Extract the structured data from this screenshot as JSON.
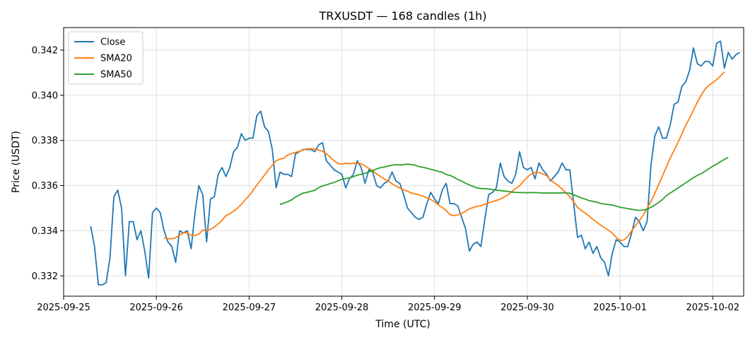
{
  "chart_data": {
    "type": "line",
    "title": "TRXUSDT — 168 candles (1h)",
    "xlabel": "Time (UTC)",
    "ylabel": "Price (USDT)",
    "x_start": "2025-09-25 07:00",
    "x_step_hours": 1,
    "xlim": [
      "2025-09-25 00:00",
      "2025-10-02 08:00"
    ],
    "ylim": [
      0.3311,
      0.343
    ],
    "x_ticks": [
      "2025-09-25",
      "2025-09-26",
      "2025-09-27",
      "2025-09-28",
      "2025-09-29",
      "2025-09-30",
      "2025-10-01",
      "2025-10-02"
    ],
    "y_ticks": [
      "0.332",
      "0.334",
      "0.336",
      "0.338",
      "0.340",
      "0.342"
    ],
    "grid": true,
    "legend_position": "top-left",
    "series": [
      {
        "name": "Close",
        "color": "#1f77b4",
        "values": [
          0.3342,
          0.3333,
          0.3316,
          0.3316,
          0.3317,
          0.3328,
          0.3355,
          0.3358,
          0.335,
          0.332,
          0.3344,
          0.3344,
          0.3336,
          0.334,
          0.3331,
          0.3319,
          0.3348,
          0.335,
          0.3348,
          0.334,
          0.3335,
          0.3333,
          0.3326,
          0.334,
          0.3339,
          0.334,
          0.3332,
          0.3348,
          0.336,
          0.3356,
          0.3335,
          0.3354,
          0.3355,
          0.3365,
          0.3368,
          0.3364,
          0.3368,
          0.3375,
          0.3377,
          0.3383,
          0.338,
          0.3381,
          0.3381,
          0.3391,
          0.3393,
          0.3386,
          0.3384,
          0.3376,
          0.3359,
          0.3366,
          0.3365,
          0.3365,
          0.3364,
          0.3374,
          0.3375,
          0.3376,
          0.3376,
          0.3376,
          0.3375,
          0.3378,
          0.3379,
          0.3371,
          0.3369,
          0.3367,
          0.3366,
          0.3365,
          0.3359,
          0.3363,
          0.3365,
          0.3371,
          0.3368,
          0.3361,
          0.3367,
          0.3366,
          0.336,
          0.3359,
          0.3361,
          0.3362,
          0.3366,
          0.3362,
          0.3361,
          0.3356,
          0.335,
          0.3348,
          0.3346,
          0.3345,
          0.3346,
          0.3352,
          0.3357,
          0.3354,
          0.3352,
          0.3358,
          0.3361,
          0.3352,
          0.3352,
          0.3351,
          0.3346,
          0.3341,
          0.3331,
          0.3334,
          0.3335,
          0.3333,
          0.3345,
          0.3356,
          0.3357,
          0.3359,
          0.337,
          0.3364,
          0.3362,
          0.3361,
          0.3365,
          0.3375,
          0.3368,
          0.3367,
          0.3368,
          0.3363,
          0.337,
          0.3367,
          0.3365,
          0.3362,
          0.3364,
          0.3366,
          0.337,
          0.3367,
          0.3367,
          0.3352,
          0.3337,
          0.3338,
          0.3332,
          0.3335,
          0.333,
          0.3333,
          0.3328,
          0.3326,
          0.332,
          0.333,
          0.3336,
          0.3335,
          0.3333,
          0.3333,
          0.3339,
          0.3346,
          0.3344,
          0.334,
          0.3344,
          0.3369,
          0.3382,
          0.3386,
          0.3381,
          0.3381,
          0.3387,
          0.3396,
          0.3397,
          0.3404,
          0.3406,
          0.3411,
          0.3421,
          0.3414,
          0.3413,
          0.3415,
          0.3415,
          0.3413,
          0.3423,
          0.3424,
          0.3412,
          0.3419,
          0.3416,
          0.3418,
          0.3419
        ]
      },
      {
        "name": "SMA20",
        "color": "#ff7f0e",
        "start_index": 19,
        "values": [
          0.33368,
          0.33365,
          0.33364,
          0.33369,
          0.3338,
          0.33391,
          0.3339,
          0.3338,
          0.33379,
          0.33385,
          0.33403,
          0.33402,
          0.33406,
          0.33416,
          0.3343,
          0.33446,
          0.33467,
          0.33475,
          0.33487,
          0.335,
          0.33517,
          0.33537,
          0.33555,
          0.33578,
          0.33602,
          0.33624,
          0.33647,
          0.3367,
          0.3369,
          0.3371,
          0.33717,
          0.33721,
          0.33736,
          0.33741,
          0.33747,
          0.33752,
          0.33758,
          0.33763,
          0.33763,
          0.33762,
          0.33757,
          0.33752,
          0.33741,
          0.33726,
          0.3371,
          0.33698,
          0.33695,
          0.33699,
          0.33697,
          0.33699,
          0.33698,
          0.33697,
          0.33687,
          0.33676,
          0.33665,
          0.33652,
          0.3364,
          0.33629,
          0.3362,
          0.33608,
          0.33598,
          0.33589,
          0.33581,
          0.33575,
          0.33567,
          0.33563,
          0.33559,
          0.33553,
          0.33546,
          0.33538,
          0.33528,
          0.33514,
          0.33502,
          0.3349,
          0.33471,
          0.33467,
          0.3347,
          0.33477,
          0.33486,
          0.33497,
          0.33503,
          0.33508,
          0.33511,
          0.33517,
          0.33523,
          0.33529,
          0.33534,
          0.3354,
          0.33549,
          0.33559,
          0.33574,
          0.33587,
          0.33599,
          0.33619,
          0.33637,
          0.33651,
          0.33658,
          0.33658,
          0.33652,
          0.33644,
          0.33625,
          0.33612,
          0.336,
          0.33585,
          0.33568,
          0.33551,
          0.33528,
          0.33503,
          0.33489,
          0.33478,
          0.33465,
          0.3345,
          0.33437,
          0.33425,
          0.33413,
          0.33402,
          0.33389,
          0.3337,
          0.33357,
          0.33359,
          0.33374,
          0.33399,
          0.33422,
          0.33445,
          0.33469,
          0.33499,
          0.3353,
          0.33566,
          0.33605,
          0.33643,
          0.33683,
          0.33722,
          0.33756,
          0.33791,
          0.33829,
          0.33867,
          0.33899,
          0.33934,
          0.3397,
          0.34,
          0.34027,
          0.34044,
          0.34056,
          0.34069,
          0.34086,
          0.34103
        ]
      },
      {
        "name": "SMA50",
        "color": "#2ca02c",
        "start_index": 49,
        "values": [
          0.33516,
          0.33522,
          0.33529,
          0.33537,
          0.33549,
          0.33558,
          0.33567,
          0.3357,
          0.33575,
          0.33579,
          0.33591,
          0.33598,
          0.33603,
          0.33609,
          0.33614,
          0.33621,
          0.33628,
          0.33631,
          0.33634,
          0.3364,
          0.33646,
          0.3365,
          0.33654,
          0.33661,
          0.33666,
          0.33674,
          0.33679,
          0.33682,
          0.33687,
          0.3369,
          0.33693,
          0.33691,
          0.33693,
          0.33695,
          0.33693,
          0.3369,
          0.33684,
          0.33681,
          0.33677,
          0.33672,
          0.33668,
          0.33663,
          0.33659,
          0.33649,
          0.33645,
          0.33637,
          0.33627,
          0.3362,
          0.3361,
          0.33603,
          0.33596,
          0.3359,
          0.33587,
          0.33586,
          0.33585,
          0.33582,
          0.3358,
          0.33578,
          0.33576,
          0.33574,
          0.33571,
          0.3357,
          0.33569,
          0.33569,
          0.33568,
          0.33569,
          0.33569,
          0.33568,
          0.33567,
          0.33567,
          0.33567,
          0.33567,
          0.33567,
          0.33568,
          0.33567,
          0.33566,
          0.33559,
          0.33552,
          0.33545,
          0.3354,
          0.33533,
          0.3353,
          0.33526,
          0.33521,
          0.33518,
          0.33516,
          0.33514,
          0.33509,
          0.33504,
          0.33501,
          0.33498,
          0.33495,
          0.33492,
          0.3349,
          0.33492,
          0.33495,
          0.33504,
          0.33514,
          0.33525,
          0.33539,
          0.33555,
          0.33567,
          0.33578,
          0.33589,
          0.33601,
          0.33612,
          0.33624,
          0.33635,
          0.33645,
          0.33653,
          0.33663,
          0.33675,
          0.33686,
          0.33695,
          0.33706,
          0.33716,
          0.33725
        ]
      }
    ]
  }
}
